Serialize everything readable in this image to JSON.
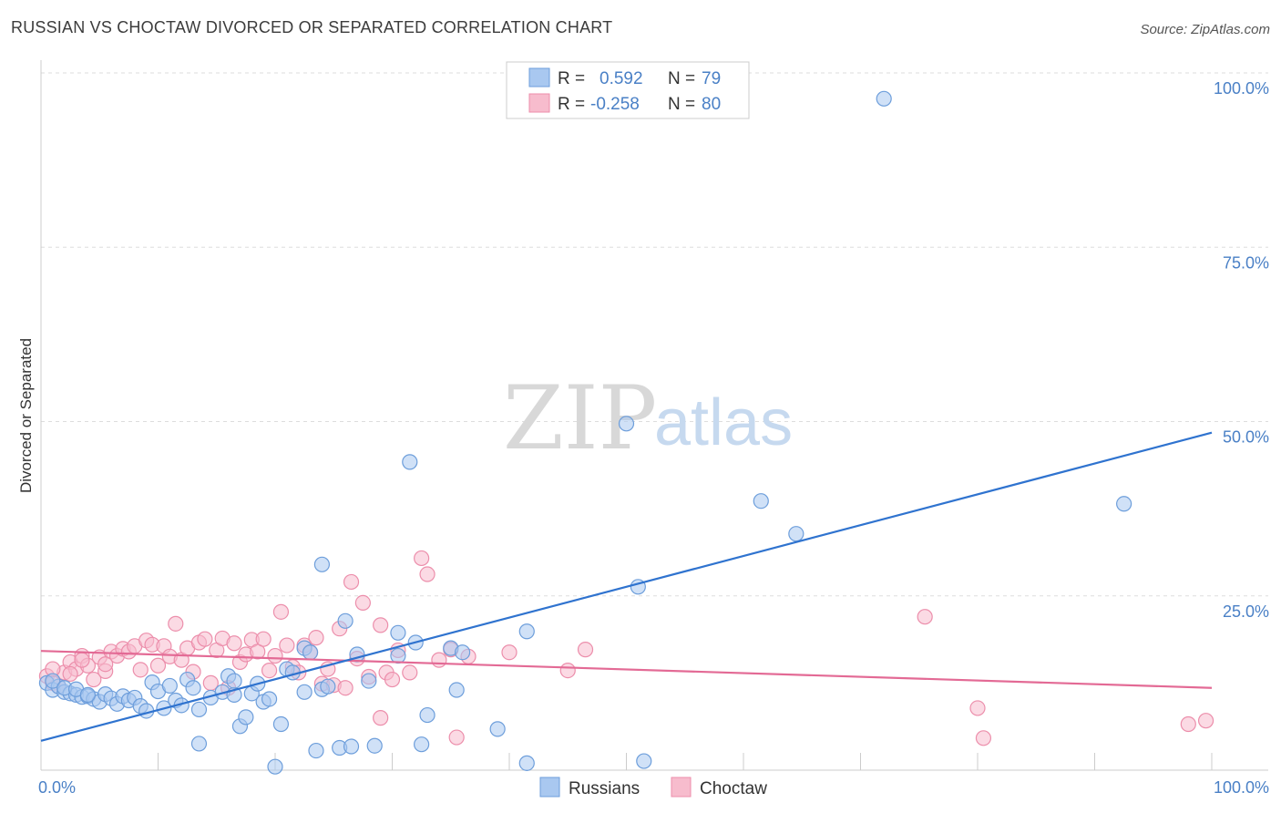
{
  "header": {
    "title": "RUSSIAN VS CHOCTAW DIVORCED OR SEPARATED CORRELATION CHART",
    "source": "Source: ZipAtlas.com"
  },
  "watermark": {
    "zip": "ZIP",
    "atlas": "atlas"
  },
  "colors": {
    "blue_fill": "#a9c8f0",
    "blue_stroke": "#6d9edb",
    "blue_line": "#2f73cf",
    "pink_fill": "#f7bccd",
    "pink_stroke": "#ec8eab",
    "pink_line": "#e36a95",
    "tick_text": "#4a80c6",
    "grid": "#dddddd"
  },
  "legend": {
    "r_label": "R =",
    "n_label": "N =",
    "entries": [
      {
        "r": "0.592",
        "n": "79"
      },
      {
        "r": "-0.258",
        "n": "80"
      }
    ]
  },
  "chart_data": {
    "type": "scatter",
    "title": "RUSSIAN VS CHOCTAW DIVORCED OR SEPARATED CORRELATION CHART",
    "xlabel": "",
    "ylabel": "Divorced or Separated",
    "xlim": [
      0,
      100
    ],
    "ylim": [
      0,
      100
    ],
    "x_tick_labels": [
      "0.0%",
      "100.0%"
    ],
    "y_ticks": [
      25,
      50,
      75,
      100
    ],
    "y_tick_labels": [
      "25.0%",
      "50.0%",
      "75.0%",
      "100.0%"
    ],
    "grid": true,
    "legend_position": "top-center",
    "bottom_legend": [
      "Russians",
      "Choctaw"
    ],
    "series": [
      {
        "name": "Russians",
        "r": 0.592,
        "n": 79,
        "trend": {
          "x": [
            0,
            100
          ],
          "y": [
            4.2,
            48.4
          ]
        },
        "points": [
          [
            0.5,
            12.5
          ],
          [
            1.0,
            11.5
          ],
          [
            1.5,
            12.0
          ],
          [
            2.0,
            11.2
          ],
          [
            2.5,
            11.0
          ],
          [
            3.0,
            10.8
          ],
          [
            3.5,
            10.5
          ],
          [
            4.0,
            10.6
          ],
          [
            4.5,
            10.2
          ],
          [
            5.0,
            9.8
          ],
          [
            5.5,
            10.9
          ],
          [
            6.0,
            10.3
          ],
          [
            6.5,
            9.5
          ],
          [
            7.0,
            10.6
          ],
          [
            7.5,
            10.0
          ],
          [
            8.0,
            10.4
          ],
          [
            8.5,
            9.2
          ],
          [
            9.0,
            8.5
          ],
          [
            9.5,
            12.6
          ],
          [
            10.0,
            11.3
          ],
          [
            10.5,
            8.9
          ],
          [
            11.0,
            12.1
          ],
          [
            11.5,
            10.0
          ],
          [
            12.0,
            9.3
          ],
          [
            12.5,
            13.0
          ],
          [
            13.0,
            11.8
          ],
          [
            13.5,
            8.7
          ],
          [
            13.5,
            3.8
          ],
          [
            14.5,
            10.4
          ],
          [
            15.5,
            11.2
          ],
          [
            16.0,
            13.5
          ],
          [
            16.5,
            10.8
          ],
          [
            16.5,
            12.8
          ],
          [
            17.0,
            6.3
          ],
          [
            17.5,
            7.6
          ],
          [
            18.0,
            11.0
          ],
          [
            18.5,
            12.4
          ],
          [
            19.0,
            9.8
          ],
          [
            19.5,
            10.2
          ],
          [
            20.0,
            0.5
          ],
          [
            20.5,
            6.6
          ],
          [
            21.0,
            14.5
          ],
          [
            21.5,
            14.0
          ],
          [
            22.5,
            17.5
          ],
          [
            22.5,
            11.2
          ],
          [
            23.0,
            16.9
          ],
          [
            23.5,
            2.8
          ],
          [
            24.0,
            11.6
          ],
          [
            24.0,
            29.5
          ],
          [
            24.5,
            12.0
          ],
          [
            25.5,
            3.2
          ],
          [
            26.0,
            21.4
          ],
          [
            26.5,
            3.4
          ],
          [
            27.0,
            16.6
          ],
          [
            28.0,
            12.8
          ],
          [
            28.5,
            3.5
          ],
          [
            30.5,
            16.4
          ],
          [
            30.5,
            19.7
          ],
          [
            31.5,
            44.2
          ],
          [
            32.0,
            18.3
          ],
          [
            32.5,
            3.7
          ],
          [
            33.0,
            7.9
          ],
          [
            35.0,
            17.5
          ],
          [
            35.5,
            11.5
          ],
          [
            36.0,
            16.9
          ],
          [
            39.0,
            5.9
          ],
          [
            41.5,
            19.9
          ],
          [
            41.5,
            1.0
          ],
          [
            50.0,
            49.7
          ],
          [
            51.0,
            26.3
          ],
          [
            51.5,
            1.3
          ],
          [
            61.5,
            38.6
          ],
          [
            64.5,
            33.9
          ],
          [
            72.0,
            96.3
          ],
          [
            92.5,
            38.2
          ],
          [
            1.0,
            12.8
          ],
          [
            2.0,
            11.8
          ],
          [
            3.0,
            11.6
          ],
          [
            4.0,
            10.8
          ]
        ]
      },
      {
        "name": "Choctaw",
        "r": -0.258,
        "n": 80,
        "trend": {
          "x": [
            0,
            100
          ],
          "y": [
            17.1,
            11.8
          ]
        },
        "points": [
          [
            0.5,
            13.5
          ],
          [
            1.0,
            12.5
          ],
          [
            1.5,
            12.0
          ],
          [
            2.0,
            14.0
          ],
          [
            2.5,
            15.5
          ],
          [
            3.0,
            14.5
          ],
          [
            3.5,
            16.4
          ],
          [
            4.0,
            15.0
          ],
          [
            4.5,
            13.0
          ],
          [
            5.0,
            16.2
          ],
          [
            5.5,
            14.2
          ],
          [
            6.0,
            17.0
          ],
          [
            6.5,
            16.4
          ],
          [
            7.0,
            17.4
          ],
          [
            7.5,
            17.0
          ],
          [
            8.0,
            17.8
          ],
          [
            8.5,
            14.4
          ],
          [
            9.0,
            18.6
          ],
          [
            9.5,
            18.0
          ],
          [
            10.0,
            15.0
          ],
          [
            10.5,
            17.8
          ],
          [
            11.0,
            16.3
          ],
          [
            11.5,
            21.0
          ],
          [
            12.0,
            15.8
          ],
          [
            12.5,
            17.5
          ],
          [
            13.0,
            14.1
          ],
          [
            13.5,
            18.3
          ],
          [
            14.0,
            18.8
          ],
          [
            14.5,
            12.5
          ],
          [
            15.0,
            17.2
          ],
          [
            15.5,
            18.9
          ],
          [
            16.0,
            11.8
          ],
          [
            16.5,
            18.2
          ],
          [
            17.0,
            15.5
          ],
          [
            17.5,
            16.6
          ],
          [
            18.0,
            18.7
          ],
          [
            18.5,
            17.0
          ],
          [
            19.0,
            18.8
          ],
          [
            19.5,
            14.3
          ],
          [
            20.0,
            16.4
          ],
          [
            20.5,
            22.7
          ],
          [
            21.0,
            17.9
          ],
          [
            21.5,
            14.8
          ],
          [
            22.0,
            14.0
          ],
          [
            22.5,
            17.9
          ],
          [
            23.0,
            16.9
          ],
          [
            23.5,
            19.0
          ],
          [
            24.0,
            12.4
          ],
          [
            24.5,
            14.5
          ],
          [
            25.0,
            12.2
          ],
          [
            25.5,
            20.3
          ],
          [
            26.0,
            11.8
          ],
          [
            26.5,
            27.0
          ],
          [
            27.0,
            16.0
          ],
          [
            27.5,
            24.0
          ],
          [
            28.0,
            13.4
          ],
          [
            29.0,
            20.8
          ],
          [
            29.5,
            14.0
          ],
          [
            30.0,
            13.0
          ],
          [
            30.5,
            17.2
          ],
          [
            31.5,
            14.0
          ],
          [
            32.5,
            30.4
          ],
          [
            33.0,
            28.1
          ],
          [
            34.0,
            15.8
          ],
          [
            35.0,
            17.3
          ],
          [
            36.5,
            16.3
          ],
          [
            40.0,
            16.9
          ],
          [
            45.0,
            14.3
          ],
          [
            46.5,
            17.3
          ],
          [
            75.5,
            22.0
          ],
          [
            80.0,
            8.9
          ],
          [
            80.5,
            4.6
          ],
          [
            98.0,
            6.6
          ],
          [
            99.5,
            7.1
          ],
          [
            35.5,
            4.7
          ],
          [
            29.0,
            7.5
          ],
          [
            1.0,
            14.5
          ],
          [
            2.5,
            13.8
          ],
          [
            3.5,
            15.8
          ],
          [
            5.5,
            15.2
          ]
        ]
      }
    ]
  }
}
